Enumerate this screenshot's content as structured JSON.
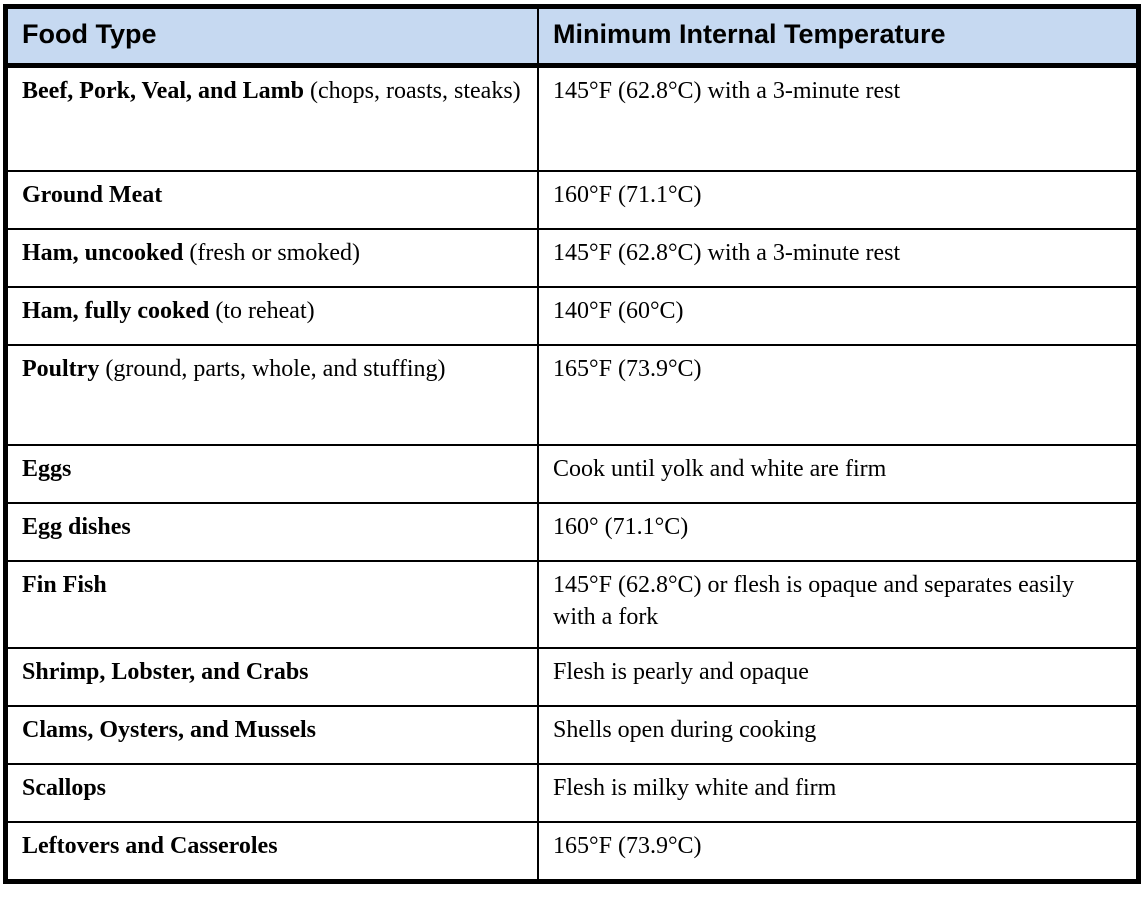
{
  "table": {
    "columns": [
      {
        "label": "Food Type"
      },
      {
        "label": "Minimum Internal Temperature"
      }
    ],
    "rows": [
      {
        "food": "Beef, Pork, Veal, and Lamb",
        "food_note": "(chops, roasts, steaks)",
        "temperature": "145°F (62.8°C) with a 3-minute rest"
      },
      {
        "food": "Ground Meat",
        "food_note": "",
        "temperature": "160°F (71.1°C)"
      },
      {
        "food": "Ham, uncooked",
        "food_note": "(fresh or smoked)",
        "temperature": "145°F (62.8°C) with a 3-minute rest"
      },
      {
        "food": "Ham, fully cooked",
        "food_note": "(to reheat)",
        "temperature": "140°F (60°C)"
      },
      {
        "food": "Poultry",
        "food_note": "(ground, parts, whole, and stuffing)",
        "temperature": "165°F (73.9°C)"
      },
      {
        "food": "Eggs",
        "food_note": "",
        "temperature": "Cook until yolk and white are firm"
      },
      {
        "food": "Egg dishes",
        "food_note": "",
        "temperature": "160° (71.1°C)"
      },
      {
        "food": "Fin Fish",
        "food_note": "",
        "temperature": "145°F (62.8°C) or flesh is opaque and separates easily with a fork"
      },
      {
        "food": "Shrimp, Lobster, and Crabs",
        "food_note": "",
        "temperature": "Flesh is pearly and opaque"
      },
      {
        "food": "Clams, Oysters, and Mussels",
        "food_note": "",
        "temperature": "Shells open during cooking"
      },
      {
        "food": "Scallops",
        "food_note": "",
        "temperature": "Flesh is milky white and firm"
      },
      {
        "food": "Leftovers and Casseroles",
        "food_note": "",
        "temperature": "165°F (73.9°C)"
      }
    ],
    "colors": {
      "header_bg": "#c6d9f1",
      "border": "#000000",
      "body_bg": "#ffffff",
      "text": "#000000"
    }
  }
}
